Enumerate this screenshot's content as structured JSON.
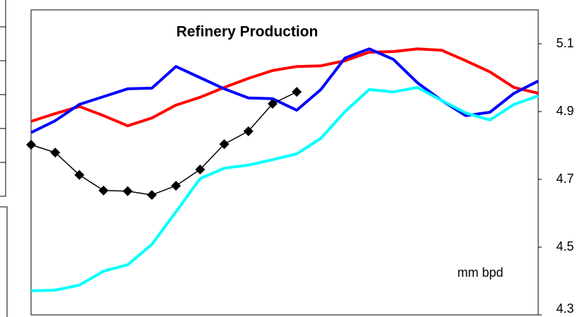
{
  "chart_data": {
    "type": "line",
    "title": "Refinery Production",
    "annotation": "mm bpd",
    "categories": [
      null,
      null,
      null,
      null,
      null,
      null,
      null,
      null,
      null,
      null,
      null,
      null,
      null,
      null,
      null,
      null,
      null,
      null,
      null,
      null,
      null,
      null
    ],
    "ylim": [
      4.3,
      5.2
    ],
    "yticks": [
      4.3,
      4.5,
      4.7,
      4.9,
      5.1
    ],
    "y_axis_side": "right",
    "series": [
      {
        "color": "#ff0000",
        "values": [
          4.871,
          4.894,
          4.915,
          4.888,
          4.858,
          4.881,
          4.919,
          4.942,
          4.971,
          4.998,
          5.021,
          5.033,
          5.035,
          5.05,
          5.075,
          5.077,
          5.085,
          5.081,
          5.05,
          5.017,
          4.971,
          4.954
        ]
      },
      {
        "color": "#0000ff",
        "values": [
          4.838,
          4.873,
          4.921,
          4.944,
          4.967,
          4.969,
          5.033,
          5.0,
          4.967,
          4.94,
          4.938,
          4.904,
          4.965,
          5.058,
          5.085,
          5.054,
          4.985,
          4.933,
          4.888,
          4.898,
          4.954,
          4.99
        ]
      },
      {
        "color": "#00ffff",
        "values": [
          4.371,
          4.373,
          4.388,
          4.429,
          4.448,
          4.508,
          4.604,
          4.702,
          4.733,
          4.742,
          4.758,
          4.775,
          4.821,
          4.9,
          4.965,
          4.958,
          4.971,
          4.933,
          4.896,
          4.875,
          4.921,
          4.946
        ]
      },
      {
        "color": "#000000",
        "marker": "diamond",
        "values": [
          4.802,
          4.779,
          4.713,
          4.667,
          4.665,
          4.654,
          4.681,
          4.729,
          4.804,
          4.842,
          4.923,
          4.958,
          null,
          null,
          null,
          null,
          null,
          null,
          null,
          null,
          null,
          null
        ]
      }
    ]
  }
}
